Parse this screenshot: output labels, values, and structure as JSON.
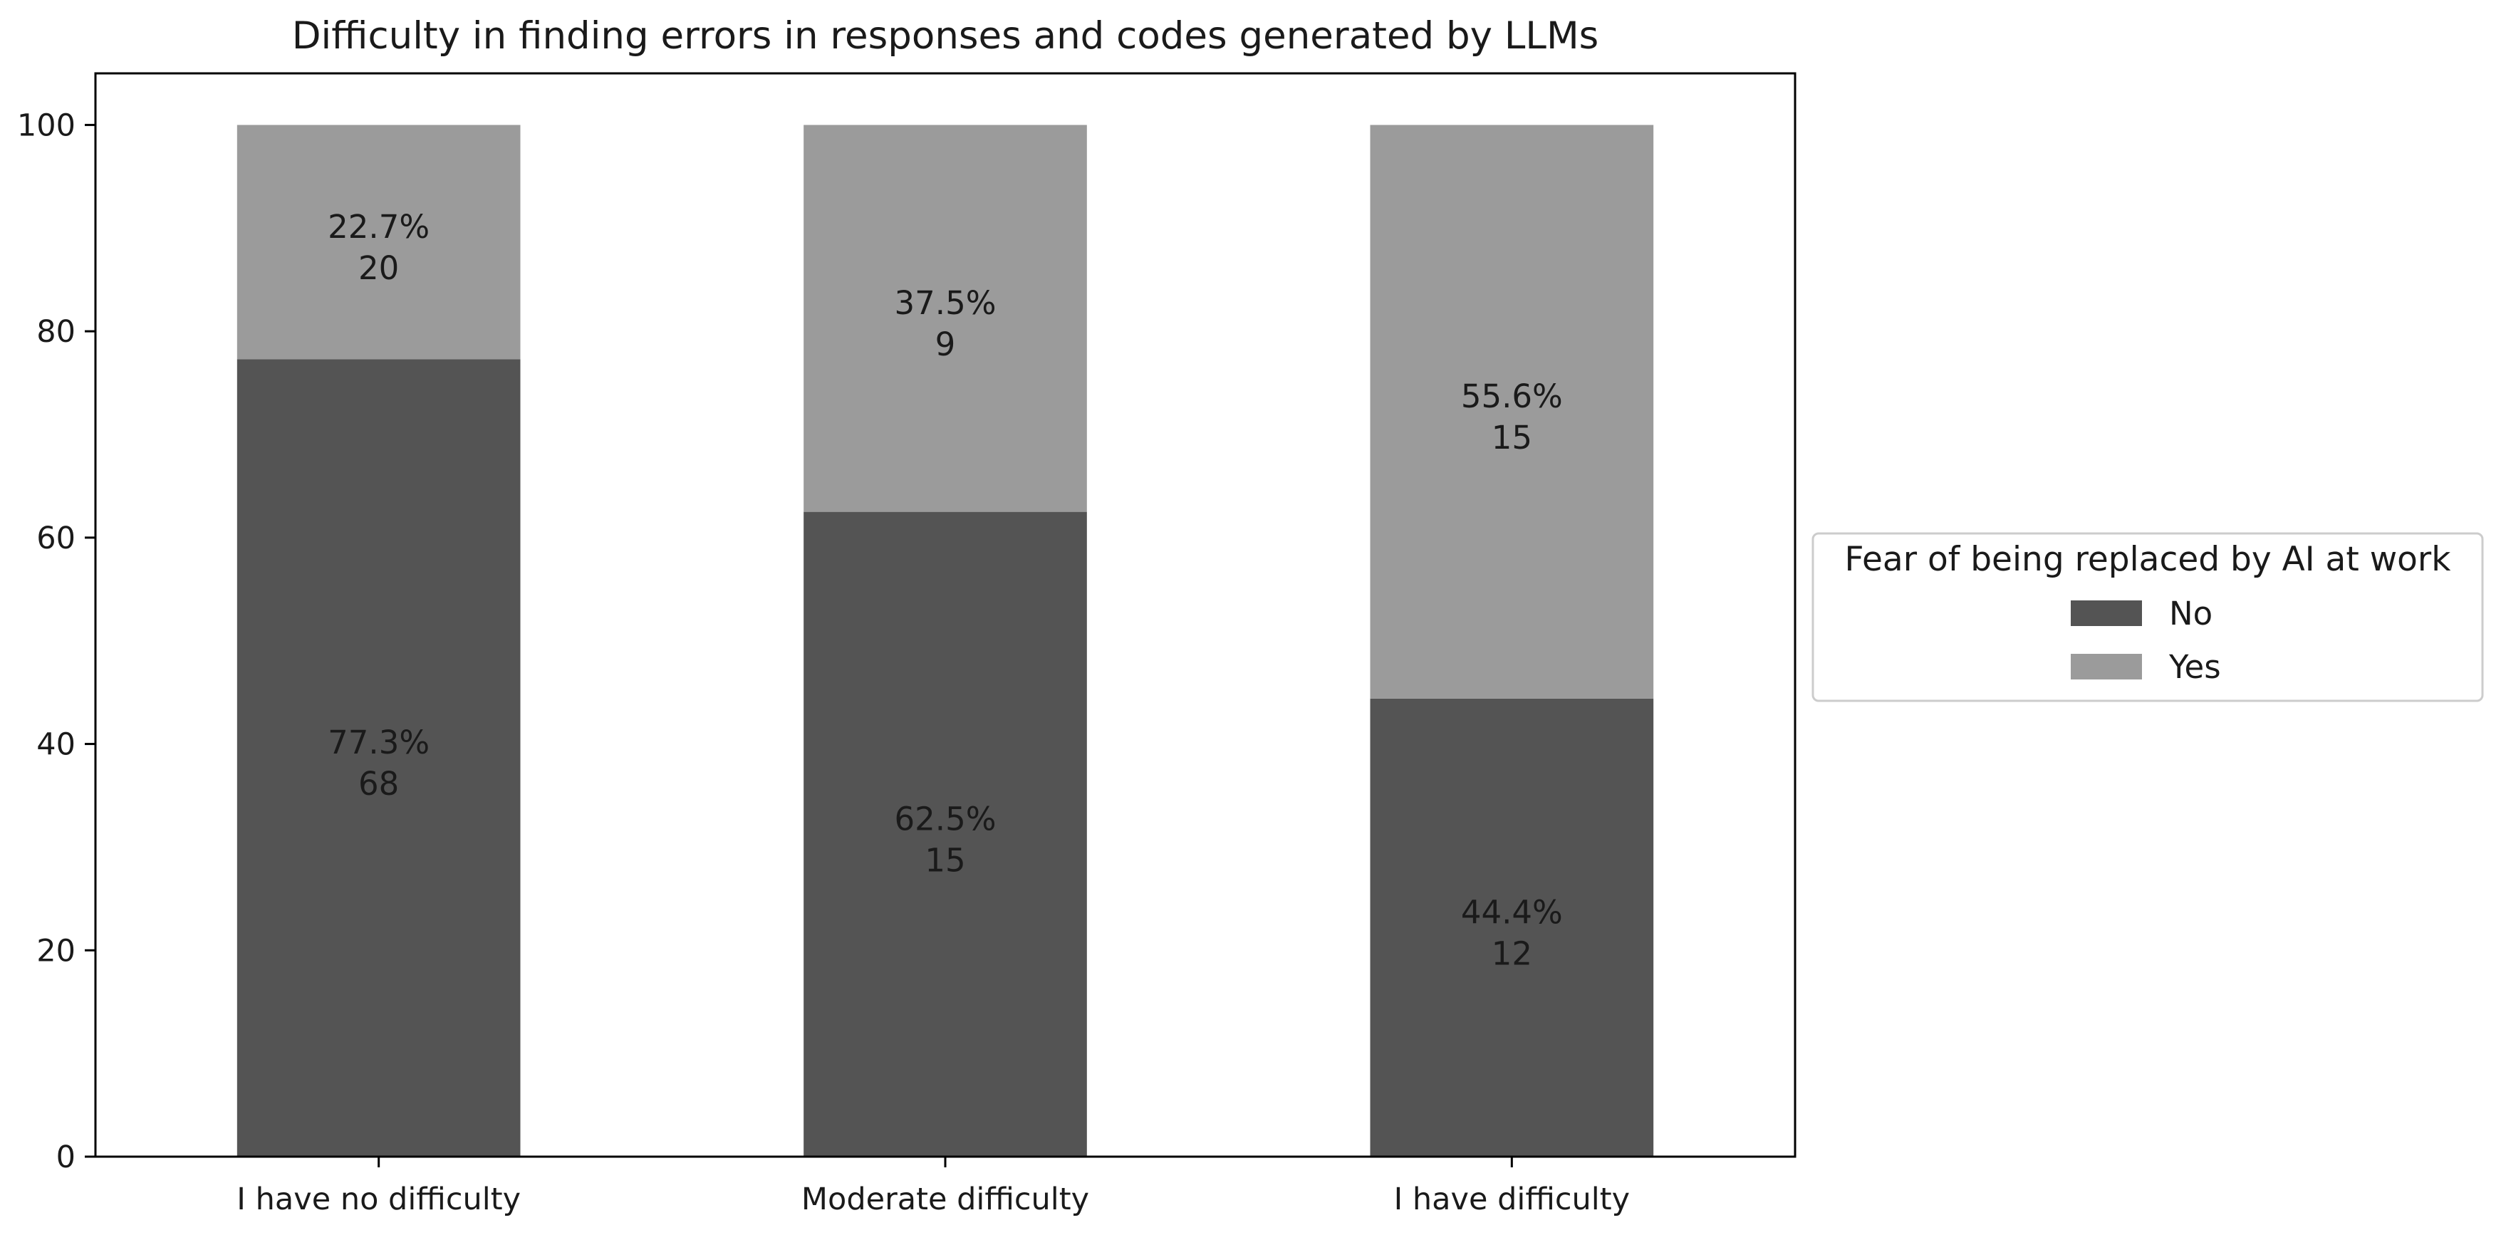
{
  "chart_data": {
    "type": "bar",
    "stacked": true,
    "title": "Difficulty in finding errors in responses and codes generated by LLMs",
    "xlabel": "",
    "ylabel": "",
    "categories": [
      "I have no difficulty",
      "Moderate difficulty",
      "I have difficulty"
    ],
    "series": [
      {
        "name": "No",
        "color": "#545454",
        "values": [
          77.3,
          62.5,
          44.4
        ],
        "percent_labels": [
          "77.3%",
          "62.5%",
          "44.4%"
        ],
        "count_labels": [
          "68",
          "15",
          "12"
        ]
      },
      {
        "name": "Yes",
        "color": "#9b9b9b",
        "values": [
          22.7,
          37.5,
          55.6
        ],
        "percent_labels": [
          "22.7%",
          "37.5%",
          "55.6%"
        ],
        "count_labels": [
          "20",
          "9",
          "15"
        ]
      }
    ],
    "ylim": [
      0,
      105
    ],
    "yticks": [
      0,
      20,
      40,
      60,
      80,
      100
    ],
    "grid": false,
    "legend": {
      "title": "Fear of being replaced by AI at work",
      "placement": "outside-right"
    }
  }
}
